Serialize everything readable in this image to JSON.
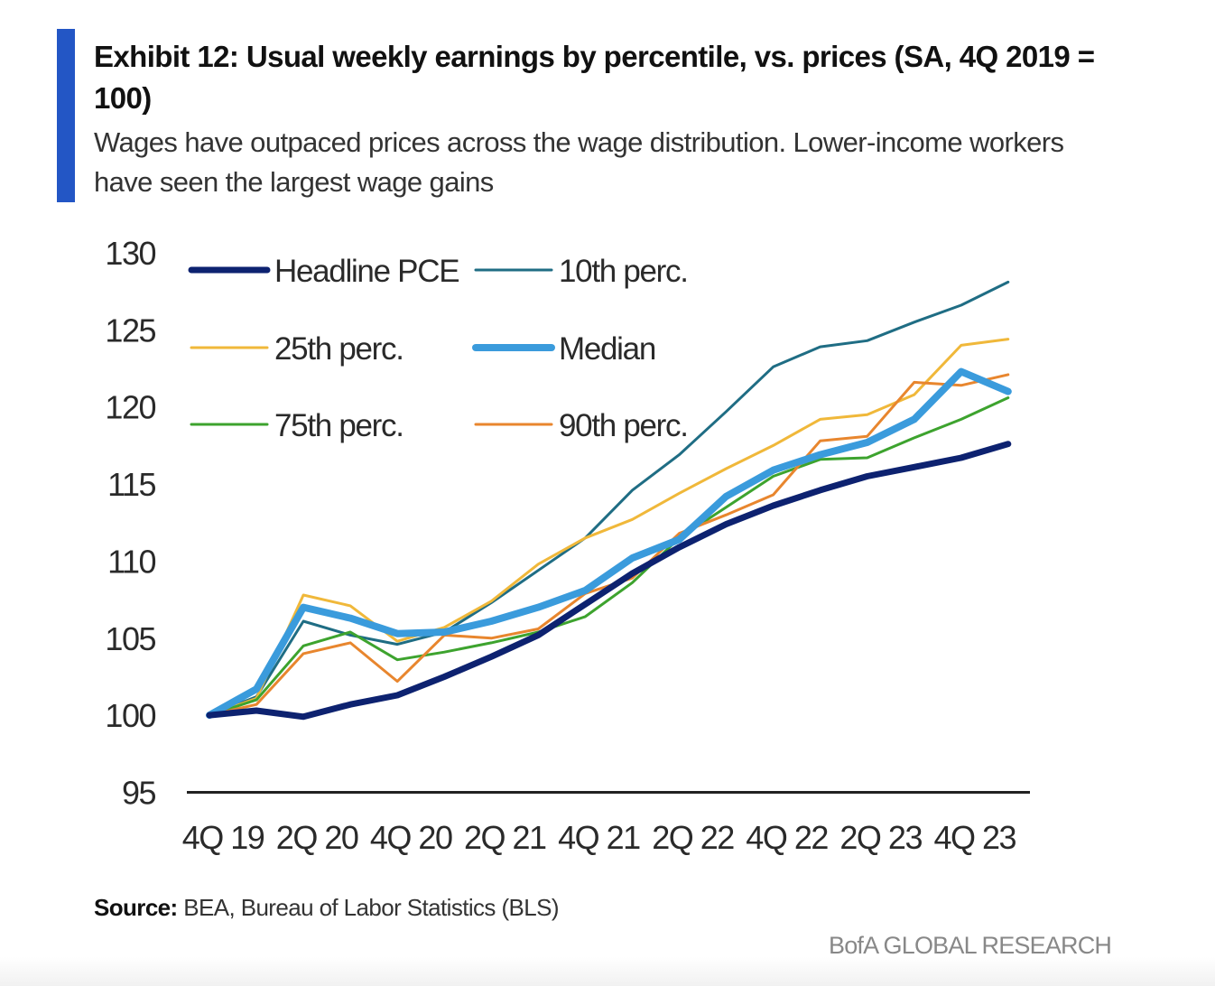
{
  "header": {
    "title": "Exhibit 12: Usual weekly earnings by percentile, vs. prices (SA, 4Q 2019 = 100)",
    "subtitle": "Wages have outpaced prices across the wage distribution. Lower-income workers have seen the largest wage gains",
    "accent_color": "#2356c5"
  },
  "footer": {
    "source_label": "Source:",
    "source_text": " BEA, Bureau of Labor Statistics (BLS)",
    "brand": "BofA GLOBAL RESEARCH"
  },
  "chart_data": {
    "type": "line",
    "title": "Exhibit 12: Usual weekly earnings by percentile, vs. prices (SA, 4Q 2019 = 100)",
    "xlabel": "",
    "ylabel": "",
    "ylim": [
      95,
      130
    ],
    "yticks": [
      95,
      100,
      105,
      110,
      115,
      120,
      125,
      130
    ],
    "x": [
      "4Q19",
      "1Q20",
      "2Q20",
      "3Q20",
      "4Q20",
      "1Q21",
      "2Q21",
      "3Q21",
      "4Q21",
      "1Q22",
      "2Q22",
      "3Q22",
      "4Q22",
      "1Q23",
      "2Q23",
      "3Q23",
      "4Q23",
      "1Q24"
    ],
    "xtick_labels": [
      "4Q 19",
      "2Q 20",
      "4Q 20",
      "2Q 21",
      "4Q 21",
      "2Q 22",
      "4Q 22",
      "2Q 23",
      "4Q 23"
    ],
    "xtick_every": 2,
    "grid": false,
    "legend_position": "top-left",
    "series": [
      {
        "name": "10th perc.",
        "color": "#1f6d84",
        "width": 3,
        "values": [
          100,
          101.2,
          106.1,
          105.2,
          104.6,
          105.4,
          107.3,
          109.4,
          111.5,
          114.6,
          116.9,
          119.7,
          122.6,
          123.9,
          124.3,
          125.5,
          126.6,
          128.1
        ]
      },
      {
        "name": "25th perc.",
        "color": "#f0b83a",
        "width": 3,
        "values": [
          100,
          101.1,
          107.8,
          107.1,
          104.8,
          105.7,
          107.4,
          109.8,
          111.5,
          112.7,
          114.4,
          116.0,
          117.5,
          119.2,
          119.5,
          120.8,
          124.0,
          124.4
        ]
      },
      {
        "name": "75th perc.",
        "color": "#3da32e",
        "width": 3,
        "values": [
          100,
          101.0,
          104.5,
          105.4,
          103.6,
          104.1,
          104.7,
          105.4,
          106.4,
          108.6,
          111.5,
          113.5,
          115.5,
          116.6,
          116.7,
          118.0,
          119.2,
          120.6
        ]
      },
      {
        "name": "90th perc.",
        "color": "#e8862e",
        "width": 3,
        "values": [
          100,
          100.7,
          104.0,
          104.7,
          102.2,
          105.2,
          105.0,
          105.6,
          107.9,
          108.9,
          111.8,
          113.0,
          114.3,
          117.8,
          118.1,
          121.6,
          121.4,
          122.1
        ]
      },
      {
        "name": "Median",
        "color": "#3a9bdc",
        "width": 8,
        "values": [
          100,
          101.7,
          107.0,
          106.3,
          105.3,
          105.4,
          106.1,
          107.0,
          108.1,
          110.2,
          111.4,
          114.2,
          115.9,
          116.9,
          117.7,
          119.2,
          122.3,
          121.0
        ]
      },
      {
        "name": "Headline PCE",
        "color": "#0d2270",
        "width": 7,
        "values": [
          100,
          100.3,
          99.9,
          100.7,
          101.3,
          102.5,
          103.8,
          105.2,
          107.2,
          109.2,
          110.9,
          112.4,
          113.6,
          114.6,
          115.5,
          116.1,
          116.7,
          117.6
        ]
      }
    ],
    "legend": [
      {
        "name": "Headline PCE",
        "color": "#0d2270",
        "width": 7
      },
      {
        "name": "10th perc.",
        "color": "#1f6d84",
        "width": 3
      },
      {
        "name": "25th perc.",
        "color": "#f0b83a",
        "width": 3
      },
      {
        "name": "Median",
        "color": "#3a9bdc",
        "width": 8
      },
      {
        "name": "75th perc.",
        "color": "#3da32e",
        "width": 3
      },
      {
        "name": "90th perc.",
        "color": "#e8862e",
        "width": 3
      }
    ]
  }
}
